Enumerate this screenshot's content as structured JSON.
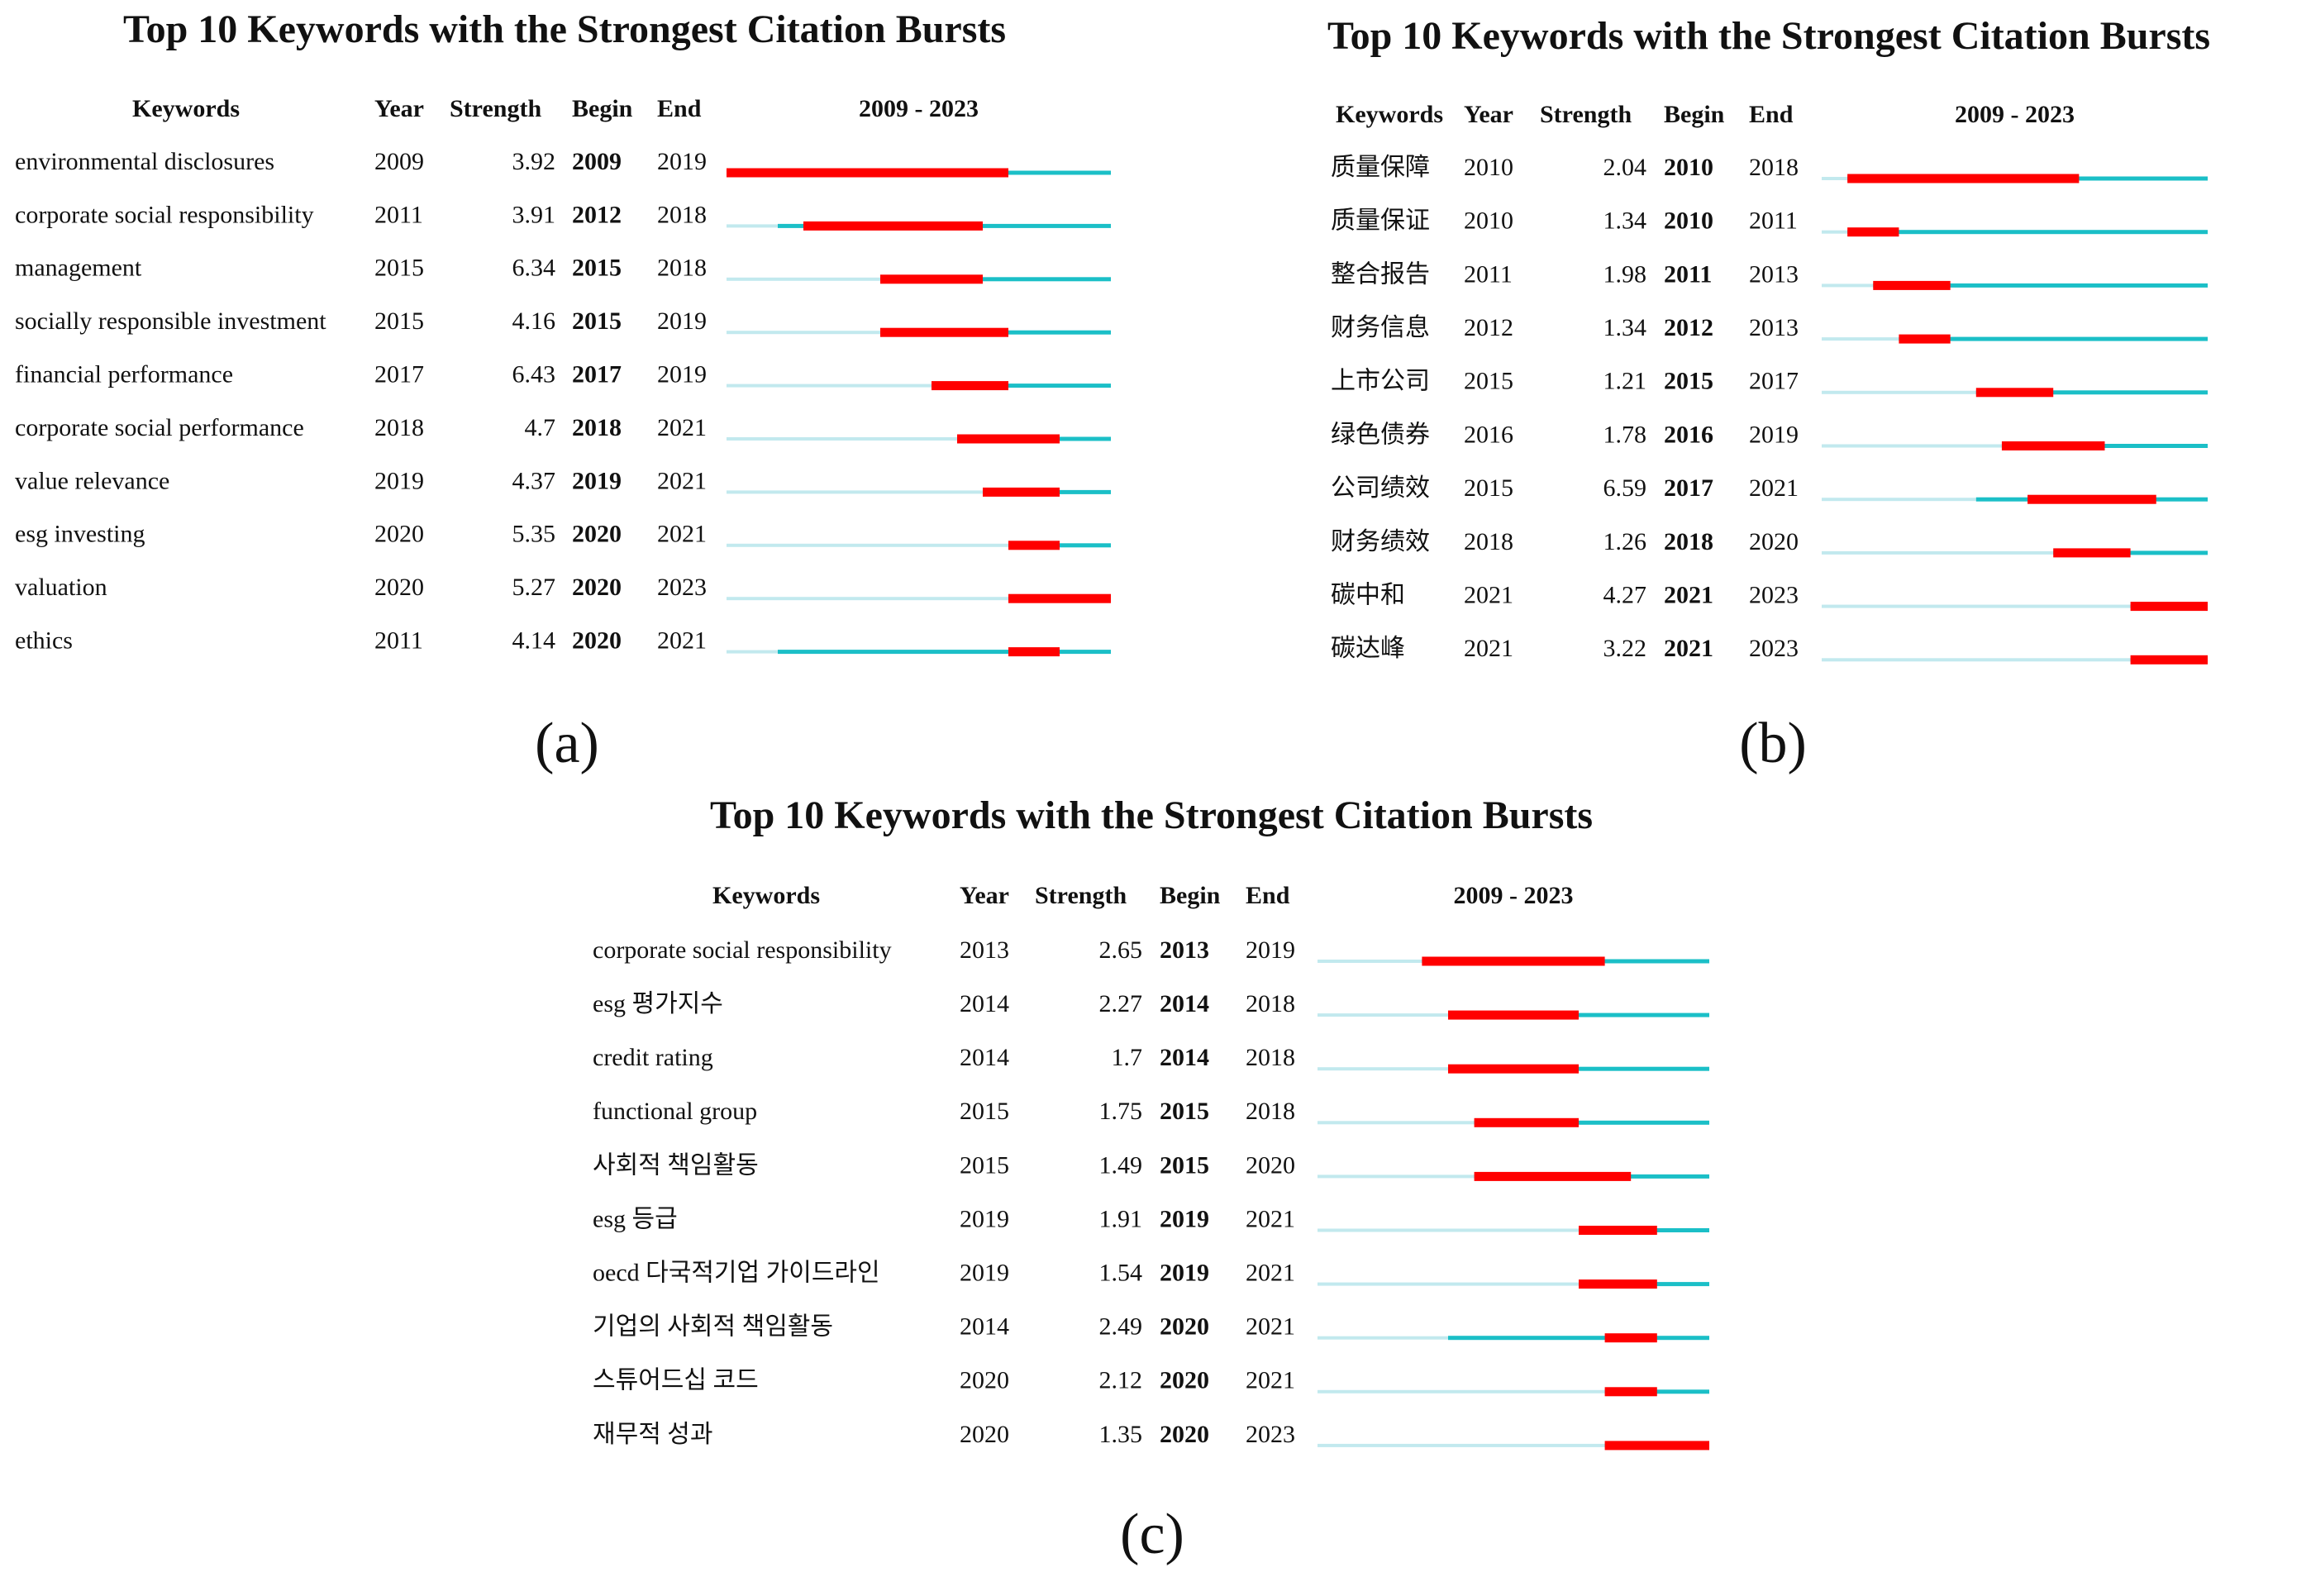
{
  "chart_data": [
    {
      "type": "burst",
      "title": "Top 10 Keywords with the Strongest Citation Bursts",
      "panel_label": "(a)",
      "columns": [
        "Keywords",
        "Year",
        "Strength",
        "Begin",
        "End"
      ],
      "range_label": "2009 - 2023",
      "xlim": [
        2009,
        2023
      ],
      "colors": {
        "before": "#c2e9ee",
        "span": "#1bbfc7",
        "burst": "#ff0000"
      },
      "rows": [
        {
          "keyword": "environmental disclosures",
          "year": 2009,
          "strength": 3.92,
          "begin": 2009,
          "end": 2019
        },
        {
          "keyword": "corporate social responsibility",
          "year": 2011,
          "strength": 3.91,
          "begin": 2012,
          "end": 2018
        },
        {
          "keyword": "management",
          "year": 2015,
          "strength": 6.34,
          "begin": 2015,
          "end": 2018
        },
        {
          "keyword": "socially responsible investment",
          "year": 2015,
          "strength": 4.16,
          "begin": 2015,
          "end": 2019
        },
        {
          "keyword": "financial performance",
          "year": 2017,
          "strength": 6.43,
          "begin": 2017,
          "end": 2019
        },
        {
          "keyword": "corporate social performance",
          "year": 2018,
          "strength": 4.7,
          "begin": 2018,
          "end": 2021
        },
        {
          "keyword": "value relevance",
          "year": 2019,
          "strength": 4.37,
          "begin": 2019,
          "end": 2021
        },
        {
          "keyword": "esg investing",
          "year": 2020,
          "strength": 5.35,
          "begin": 2020,
          "end": 2021
        },
        {
          "keyword": "valuation",
          "year": 2020,
          "strength": 5.27,
          "begin": 2020,
          "end": 2023
        },
        {
          "keyword": "ethics",
          "year": 2011,
          "strength": 4.14,
          "begin": 2020,
          "end": 2021
        }
      ]
    },
    {
      "type": "burst",
      "title": "Top 10 Keywords with the Strongest Citation Bursts",
      "panel_label": "(b)",
      "columns": [
        "Keywords",
        "Year",
        "Strength",
        "Begin",
        "End"
      ],
      "range_label": "2009 - 2023",
      "xlim": [
        2009,
        2023
      ],
      "colors": {
        "before": "#c2e9ee",
        "span": "#1bbfc7",
        "burst": "#ff0000"
      },
      "rows": [
        {
          "keyword": "质量保障",
          "year": 2010,
          "strength": 2.04,
          "begin": 2010,
          "end": 2018
        },
        {
          "keyword": "质量保证",
          "year": 2010,
          "strength": 1.34,
          "begin": 2010,
          "end": 2011
        },
        {
          "keyword": "整合报告",
          "year": 2011,
          "strength": 1.98,
          "begin": 2011,
          "end": 2013
        },
        {
          "keyword": "财务信息",
          "year": 2012,
          "strength": 1.34,
          "begin": 2012,
          "end": 2013
        },
        {
          "keyword": "上市公司",
          "year": 2015,
          "strength": 1.21,
          "begin": 2015,
          "end": 2017
        },
        {
          "keyword": "绿色债券",
          "year": 2016,
          "strength": 1.78,
          "begin": 2016,
          "end": 2019
        },
        {
          "keyword": "公司绩效",
          "year": 2015,
          "strength": 6.59,
          "begin": 2017,
          "end": 2021
        },
        {
          "keyword": "财务绩效",
          "year": 2018,
          "strength": 1.26,
          "begin": 2018,
          "end": 2020
        },
        {
          "keyword": "碳中和",
          "year": 2021,
          "strength": 4.27,
          "begin": 2021,
          "end": 2023
        },
        {
          "keyword": "碳达峰",
          "year": 2021,
          "strength": 3.22,
          "begin": 2021,
          "end": 2023
        }
      ]
    },
    {
      "type": "burst",
      "title": "Top 10 Keywords with the Strongest Citation Bursts",
      "panel_label": "(c)",
      "columns": [
        "Keywords",
        "Year",
        "Strength",
        "Begin",
        "End"
      ],
      "range_label": "2009 - 2023",
      "xlim": [
        2009,
        2023
      ],
      "colors": {
        "before": "#c2e9ee",
        "span": "#1bbfc7",
        "burst": "#ff0000"
      },
      "rows": [
        {
          "keyword": "corporate social responsibility",
          "year": 2013,
          "strength": 2.65,
          "begin": 2013,
          "end": 2019
        },
        {
          "keyword": "esg 평가지수",
          "year": 2014,
          "strength": 2.27,
          "begin": 2014,
          "end": 2018
        },
        {
          "keyword": "credit rating",
          "year": 2014,
          "strength": 1.7,
          "begin": 2014,
          "end": 2018
        },
        {
          "keyword": "functional group",
          "year": 2015,
          "strength": 1.75,
          "begin": 2015,
          "end": 2018
        },
        {
          "keyword": "사회적 책임활동",
          "year": 2015,
          "strength": 1.49,
          "begin": 2015,
          "end": 2020
        },
        {
          "keyword": "esg 등급",
          "year": 2019,
          "strength": 1.91,
          "begin": 2019,
          "end": 2021
        },
        {
          "keyword": "oecd 다국적기업 가이드라인",
          "year": 2019,
          "strength": 1.54,
          "begin": 2019,
          "end": 2021
        },
        {
          "keyword": "기업의 사회적 책임활동",
          "year": 2014,
          "strength": 2.49,
          "begin": 2020,
          "end": 2021
        },
        {
          "keyword": "스튜어드십 코드",
          "year": 2020,
          "strength": 2.12,
          "begin": 2020,
          "end": 2021
        },
        {
          "keyword": "재무적 성과",
          "year": 2020,
          "strength": 1.35,
          "begin": 2020,
          "end": 2023
        }
      ]
    }
  ]
}
